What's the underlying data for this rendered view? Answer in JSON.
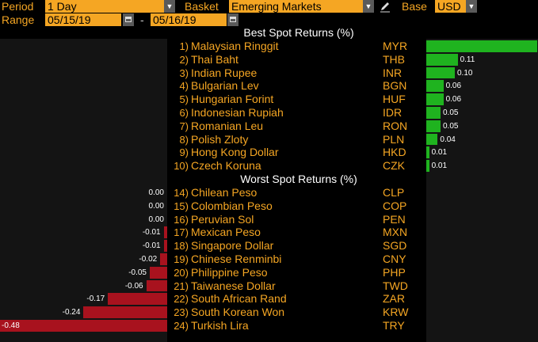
{
  "controls": {
    "period_label": "Period",
    "period_value": "1 Day",
    "basket_label": "Basket",
    "basket_value": "Emerging Markets",
    "base_label": "Base",
    "base_value": "USD",
    "range_label": "Range",
    "date_from": "05/15/19",
    "date_sep": "-",
    "date_to": "05/16/19"
  },
  "best_title": "Best Spot Returns (%)",
  "worst_title": "Worst Spot Returns (%)",
  "best": [
    {
      "rank": "1)",
      "name": "Malaysian Ringgit",
      "code": "MYR",
      "value": 0.39,
      "label": ""
    },
    {
      "rank": "2)",
      "name": "Thai Baht",
      "code": "THB",
      "value": 0.11,
      "label": "0.11"
    },
    {
      "rank": "3)",
      "name": "Indian Rupee",
      "code": "INR",
      "value": 0.1,
      "label": "0.10"
    },
    {
      "rank": "4)",
      "name": "Bulgarian Lev",
      "code": "BGN",
      "value": 0.06,
      "label": "0.06"
    },
    {
      "rank": "5)",
      "name": "Hungarian Forint",
      "code": "HUF",
      "value": 0.06,
      "label": "0.06"
    },
    {
      "rank": "6)",
      "name": "Indonesian Rupiah",
      "code": "IDR",
      "value": 0.05,
      "label": "0.05"
    },
    {
      "rank": "7)",
      "name": "Romanian Leu",
      "code": "RON",
      "value": 0.05,
      "label": "0.05"
    },
    {
      "rank": "8)",
      "name": "Polish Zloty",
      "code": "PLN",
      "value": 0.04,
      "label": "0.04"
    },
    {
      "rank": "9)",
      "name": "Hong Kong Dollar",
      "code": "HKD",
      "value": 0.01,
      "label": "0.01"
    },
    {
      "rank": "10)",
      "name": "Czech Koruna",
      "code": "CZK",
      "value": 0.01,
      "label": "0.01"
    }
  ],
  "worst": [
    {
      "rank": "14)",
      "name": "Chilean Peso",
      "code": "CLP",
      "value": 0.0,
      "label": "0.00"
    },
    {
      "rank": "15)",
      "name": "Colombian Peso",
      "code": "COP",
      "value": 0.0,
      "label": "0.00"
    },
    {
      "rank": "16)",
      "name": "Peruvian Sol",
      "code": "PEN",
      "value": 0.0,
      "label": "0.00"
    },
    {
      "rank": "17)",
      "name": "Mexican Peso",
      "code": "MXN",
      "value": -0.01,
      "label": "-0.01"
    },
    {
      "rank": "18)",
      "name": "Singapore Dollar",
      "code": "SGD",
      "value": -0.01,
      "label": "-0.01"
    },
    {
      "rank": "19)",
      "name": "Chinese Renminbi",
      "code": "CNY",
      "value": -0.02,
      "label": "-0.02"
    },
    {
      "rank": "20)",
      "name": "Philippine Peso",
      "code": "PHP",
      "value": -0.05,
      "label": "-0.05"
    },
    {
      "rank": "21)",
      "name": "Taiwanese Dollar",
      "code": "TWD",
      "value": -0.06,
      "label": "-0.06"
    },
    {
      "rank": "22)",
      "name": "South African Rand",
      "code": "ZAR",
      "value": -0.17,
      "label": "-0.17"
    },
    {
      "rank": "23)",
      "name": "South Korean Won",
      "code": "KRW",
      "value": -0.24,
      "label": "-0.24"
    },
    {
      "rank": "24)",
      "name": "Turkish Lira",
      "code": "TRY",
      "value": -0.48,
      "label": "-0.48"
    }
  ],
  "colors": {
    "accent": "#f5a623",
    "positive": "#1fb31f",
    "negative": "#a8121e"
  },
  "icons": {
    "dropdown": "chevron-down-icon",
    "calendar": "calendar-icon",
    "edit": "pencil-icon"
  }
}
